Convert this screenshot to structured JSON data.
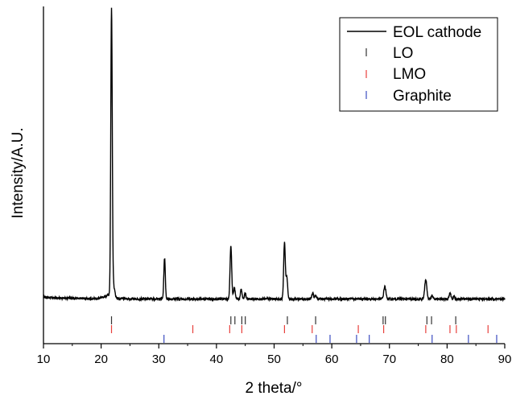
{
  "chart_data": {
    "type": "line",
    "title": "",
    "xlabel": "2 theta/°",
    "ylabel": "Intensity/A.U.",
    "xlim": [
      10,
      90
    ],
    "xticks": [
      10,
      20,
      30,
      40,
      50,
      60,
      70,
      80,
      90
    ],
    "y_tick_labels_shown": false,
    "grid": false,
    "legend_position": "top-right",
    "series": [
      {
        "name": "EOL cathode",
        "kind": "xrd-pattern",
        "color": "#000000",
        "baseline": 0.01,
        "baseline_slope": 0.0,
        "peaks": [
          {
            "x": 21.2,
            "height": 0.012,
            "width": 0.9
          },
          {
            "x": 21.8,
            "height": 1.0,
            "width": 0.18
          },
          {
            "x": 22.1,
            "height": 0.045,
            "width": 0.35
          },
          {
            "x": 31.0,
            "height": 0.145,
            "width": 0.18
          },
          {
            "x": 42.5,
            "height": 0.19,
            "width": 0.2
          },
          {
            "x": 43.1,
            "height": 0.04,
            "width": 0.2
          },
          {
            "x": 44.3,
            "height": 0.035,
            "width": 0.18
          },
          {
            "x": 45.0,
            "height": 0.02,
            "width": 0.18
          },
          {
            "x": 51.8,
            "height": 0.2,
            "width": 0.2
          },
          {
            "x": 52.2,
            "height": 0.075,
            "width": 0.2
          },
          {
            "x": 56.7,
            "height": 0.02,
            "width": 0.2
          },
          {
            "x": 57.2,
            "height": 0.012,
            "width": 0.2
          },
          {
            "x": 69.2,
            "height": 0.045,
            "width": 0.25
          },
          {
            "x": 76.3,
            "height": 0.07,
            "width": 0.25
          },
          {
            "x": 77.4,
            "height": 0.012,
            "width": 0.2
          },
          {
            "x": 80.5,
            "height": 0.022,
            "width": 0.22
          },
          {
            "x": 81.2,
            "height": 0.008,
            "width": 0.2
          }
        ]
      }
    ],
    "reference_markers": [
      {
        "name": "LO",
        "color": "#333333",
        "x": [
          21.8,
          42.5,
          43.2,
          44.4,
          45.0,
          52.3,
          57.2,
          68.9,
          69.3,
          76.5,
          77.3,
          81.5
        ]
      },
      {
        "name": "LMO",
        "color": "#e8403c",
        "x": [
          21.8,
          35.9,
          42.3,
          44.4,
          51.8,
          56.6,
          64.6,
          69.0,
          76.3,
          80.5,
          81.6,
          87.1
        ]
      },
      {
        "name": "Graphite",
        "color": "#3b4cc0",
        "x": [
          30.9,
          57.3,
          59.7,
          64.3,
          66.5,
          77.4,
          83.7,
          88.6
        ]
      }
    ]
  }
}
